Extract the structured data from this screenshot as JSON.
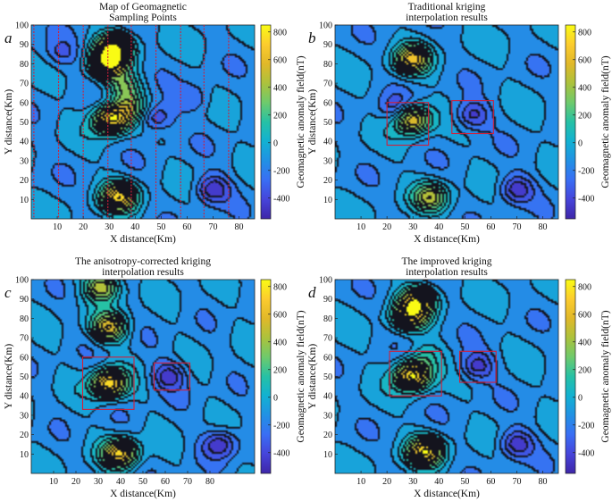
{
  "chart_data": [
    {
      "type": "heatmap",
      "panel_letter": "a",
      "title": [
        "Map of Geomagnetic",
        "Sampling Points"
      ],
      "xlabel": "X distance(Km)",
      "ylabel": "Y distance(Km)",
      "colorbar_label": "Geomagnetic anomaly field(nT)",
      "x_ticks": [
        10,
        20,
        30,
        40,
        50,
        60,
        70,
        80
      ],
      "y_ticks": [
        10,
        20,
        30,
        40,
        50,
        60,
        70,
        80,
        90,
        100
      ],
      "xlim": [
        0,
        86
      ],
      "ylim": [
        0,
        100
      ],
      "colorbar_ticks": [
        -400,
        -200,
        0,
        200,
        400,
        600,
        800
      ],
      "clim": [
        -550,
        850
      ],
      "sampling_lines_x": [
        1,
        10.5,
        20,
        29.5,
        38.5,
        48,
        57.5,
        66.5,
        76
      ],
      "anomalies": [
        {
          "x": 32,
          "y": 88,
          "value": 700
        },
        {
          "x": 30,
          "y": 80,
          "value": 720
        },
        {
          "x": 36,
          "y": 68,
          "value": 250
        },
        {
          "x": 31,
          "y": 51,
          "value": 800
        },
        {
          "x": 38,
          "y": 57,
          "value": 300
        },
        {
          "x": 34,
          "y": 11,
          "value": 700
        },
        {
          "x": 48,
          "y": 52,
          "value": -450
        },
        {
          "x": 70,
          "y": 15,
          "value": -500
        },
        {
          "x": 63,
          "y": 62,
          "value": -300
        },
        {
          "x": 12,
          "y": 85,
          "value": -300
        }
      ]
    },
    {
      "type": "heatmap",
      "panel_letter": "b",
      "title": [
        "Traditional kriging",
        "interpolation results"
      ],
      "xlabel": "X distance(Km)",
      "ylabel": "Y distance(Km)",
      "colorbar_label": "Geomagnetic anomaly field(nT)",
      "x_ticks": [
        10,
        20,
        30,
        40,
        50,
        60,
        70,
        80
      ],
      "y_ticks": [
        10,
        20,
        30,
        40,
        50,
        60,
        70,
        80,
        90,
        100
      ],
      "xlim": [
        0,
        86
      ],
      "ylim": [
        0,
        100
      ],
      "colorbar_ticks": [
        -400,
        -200,
        0,
        200,
        400,
        600,
        800
      ],
      "clim": [
        -550,
        850
      ],
      "highlight_boxes": [
        {
          "x0": 20,
          "x1": 36,
          "y0": 38,
          "y1": 60
        },
        {
          "x0": 45,
          "x1": 61,
          "y0": 44,
          "y1": 61
        }
      ],
      "anomalies": [
        {
          "x": 30,
          "y": 82,
          "value": 600
        },
        {
          "x": 30,
          "y": 51,
          "value": 650
        },
        {
          "x": 37,
          "y": 11,
          "value": 420
        },
        {
          "x": 53,
          "y": 53,
          "value": -450
        },
        {
          "x": 70,
          "y": 15,
          "value": -480
        },
        {
          "x": 24,
          "y": 57,
          "value": -350
        }
      ]
    },
    {
      "type": "heatmap",
      "panel_letter": "c",
      "title": [
        "The anisotropy-corrected kriging",
        "interpolation results"
      ],
      "xlabel": "X distance(Km)",
      "ylabel": "Y distance(Km)",
      "colorbar_label": "Geomagnetic anomaly field(nT)",
      "x_ticks": [
        10,
        20,
        30,
        40,
        50,
        60,
        70,
        80
      ],
      "y_ticks": [
        10,
        20,
        30,
        40,
        50,
        60,
        70,
        80,
        90,
        100
      ],
      "xlim": [
        0,
        100
      ],
      "ylim": [
        0,
        100
      ],
      "colorbar_ticks": [
        -400,
        -200,
        0,
        200,
        400,
        600,
        800
      ],
      "clim": [
        -550,
        850
      ],
      "highlight_boxes": [
        {
          "x0": 23,
          "x1": 46,
          "y0": 33,
          "y1": 60
        },
        {
          "x0": 55,
          "x1": 71,
          "y0": 43,
          "y1": 57
        }
      ],
      "anomalies": [
        {
          "x": 32,
          "y": 96,
          "value": 500
        },
        {
          "x": 35,
          "y": 75,
          "value": 550
        },
        {
          "x": 35,
          "y": 46,
          "value": 800
        },
        {
          "x": 40,
          "y": 10,
          "value": 700
        },
        {
          "x": 62,
          "y": 50,
          "value": -450
        },
        {
          "x": 85,
          "y": 15,
          "value": -480
        }
      ]
    },
    {
      "type": "heatmap",
      "panel_letter": "d",
      "title": [
        "The improved kriging",
        "interpolation results"
      ],
      "xlabel": "X distance(Km)",
      "ylabel": "Y distance(Km)",
      "colorbar_label": "Geomagnetic anomaly field(nT)",
      "x_ticks": [
        10,
        20,
        30,
        40,
        50,
        60,
        70,
        80
      ],
      "y_ticks": [
        10,
        20,
        30,
        40,
        50,
        60,
        70,
        80,
        90,
        100
      ],
      "xlim": [
        0,
        86
      ],
      "ylim": [
        0,
        100
      ],
      "colorbar_ticks": [
        -400,
        -200,
        0,
        200,
        400,
        600,
        800
      ],
      "clim": [
        -550,
        850
      ],
      "highlight_boxes": [
        {
          "x0": 21,
          "x1": 41,
          "y0": 40,
          "y1": 63
        },
        {
          "x0": 48,
          "x1": 62,
          "y0": 47,
          "y1": 63
        }
      ],
      "anomalies": [
        {
          "x": 32,
          "y": 89,
          "value": 600
        },
        {
          "x": 29,
          "y": 81,
          "value": 550
        },
        {
          "x": 30,
          "y": 50,
          "value": 850
        },
        {
          "x": 35,
          "y": 60,
          "value": 100
        },
        {
          "x": 35,
          "y": 11,
          "value": 750
        },
        {
          "x": 55,
          "y": 55,
          "value": -450
        },
        {
          "x": 70,
          "y": 15,
          "value": -480
        }
      ]
    }
  ]
}
